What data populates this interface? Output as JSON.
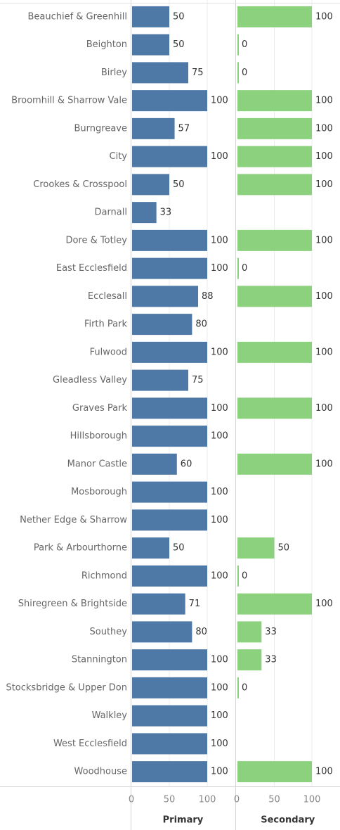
{
  "chart_data": {
    "type": "bar",
    "orientation": "horizontal",
    "categories": [
      "Beauchief & Greenhill",
      "Beighton",
      "Birley",
      "Broomhill & Sharrow Vale",
      "Burngreave",
      "City",
      "Crookes & Crosspool",
      "Darnall",
      "Dore & Totley",
      "East Ecclesfield",
      "Ecclesall",
      "Firth Park",
      "Fulwood",
      "Gleadless Valley",
      "Graves Park",
      "Hillsborough",
      "Manor Castle",
      "Mosborough",
      "Nether Edge & Sharrow",
      "Park & Arbourthorne",
      "Richmond",
      "Shiregreen & Brightside",
      "Southey",
      "Stannington",
      "Stocksbridge & Upper Don",
      "Walkley",
      "West Ecclesfield",
      "Woodhouse"
    ],
    "series": [
      {
        "name": "Primary",
        "color": "#4e79a7",
        "values": [
          50,
          50,
          75,
          100,
          57,
          100,
          50,
          33,
          100,
          100,
          88,
          80,
          100,
          75,
          100,
          100,
          60,
          100,
          100,
          50,
          100,
          71,
          80,
          100,
          100,
          100,
          100,
          100
        ]
      },
      {
        "name": "Secondary",
        "color": "#8cd17d",
        "values": [
          100,
          0,
          0,
          100,
          100,
          100,
          100,
          null,
          100,
          0,
          100,
          null,
          100,
          null,
          100,
          null,
          100,
          null,
          null,
          50,
          0,
          100,
          33,
          33,
          0,
          null,
          null,
          100
        ]
      }
    ],
    "xlim": [
      0,
      100
    ],
    "ticks": [
      "0",
      "50",
      "100"
    ],
    "grid": true,
    "legend": "none"
  }
}
